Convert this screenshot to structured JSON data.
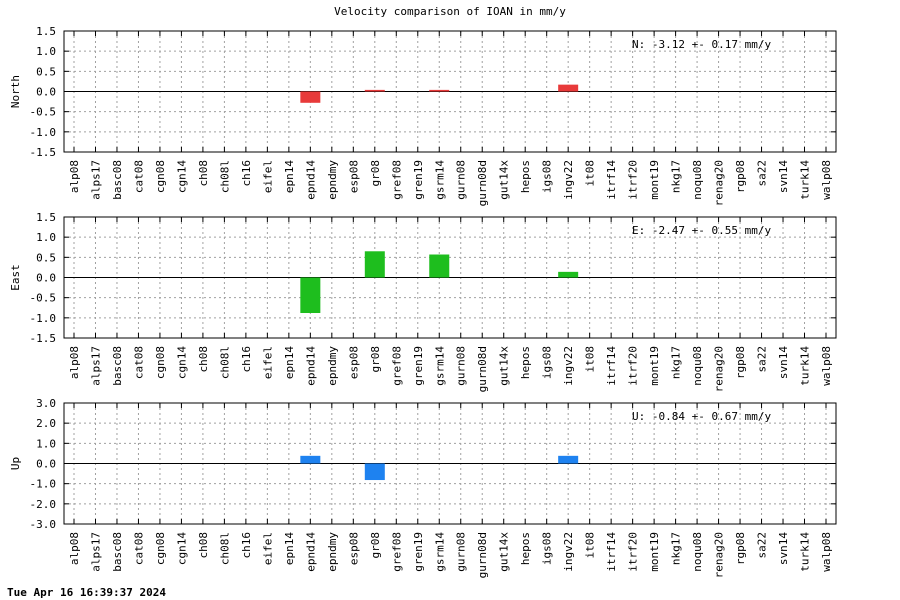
{
  "title": "Velocity comparison of IOAN in mm/y",
  "footer": "Tue Apr 16 16:39:37 2024",
  "chart_data": [
    {
      "type": "bar",
      "ylabel": "North",
      "annotation": "N:  -3.12 +-  0.17 mm/y",
      "ylim": [
        -1.5,
        1.5
      ],
      "yticks": [
        "1.5",
        "1.0",
        "0.5",
        "0.0",
        "-0.5",
        "-1.0",
        "-1.5"
      ],
      "color": "#e83a3a",
      "grid": true,
      "categories": [
        "alp08",
        "alps17",
        "basc08",
        "cat08",
        "cgn08",
        "cgn14",
        "ch08",
        "ch08l",
        "ch16",
        "eifel",
        "epn14",
        "epnd14",
        "epndmy",
        "esp08",
        "gr08",
        "gref08",
        "gren19",
        "gsrm14",
        "gurn08",
        "gurn08d",
        "gut14x",
        "hepos",
        "igs08",
        "ingv22",
        "it08",
        "itrf14",
        "itrf20",
        "mont19",
        "nkg17",
        "noqu08",
        "renag20",
        "rgp08",
        "sa22",
        "svn14",
        "turk14",
        "walp08"
      ],
      "values": [
        0,
        0,
        0,
        0,
        0,
        0,
        0,
        0,
        0,
        0,
        0,
        -0.28,
        0,
        0,
        0.04,
        0,
        0,
        0.04,
        0,
        0,
        0,
        0,
        0,
        0.17,
        0,
        0,
        0,
        0,
        0,
        0,
        0,
        0,
        0,
        0,
        0,
        0
      ]
    },
    {
      "type": "bar",
      "ylabel": "East",
      "annotation": "E:  -2.47 +-  0.55 mm/y",
      "ylim": [
        -1.5,
        1.5
      ],
      "yticks": [
        "1.5",
        "1.0",
        "0.5",
        "0.0",
        "-0.5",
        "-1.0",
        "-1.5"
      ],
      "color": "#1ebe1e",
      "grid": true,
      "categories": [
        "alp08",
        "alps17",
        "basc08",
        "cat08",
        "cgn08",
        "cgn14",
        "ch08",
        "ch08l",
        "ch16",
        "eifel",
        "epn14",
        "epnd14",
        "epndmy",
        "esp08",
        "gr08",
        "gref08",
        "gren19",
        "gsrm14",
        "gurn08",
        "gurn08d",
        "gut14x",
        "hepos",
        "igs08",
        "ingv22",
        "it08",
        "itrf14",
        "itrf20",
        "mont19",
        "nkg17",
        "noqu08",
        "renag20",
        "rgp08",
        "sa22",
        "svn14",
        "turk14",
        "walp08"
      ],
      "values": [
        0,
        0,
        0,
        0,
        0,
        0,
        0,
        0,
        0,
        0,
        0,
        -0.88,
        0,
        0,
        0.65,
        0,
        0,
        0.57,
        0,
        0,
        0,
        0,
        0,
        0.14,
        0,
        0,
        0,
        0,
        0,
        0,
        0,
        0,
        0,
        0,
        0,
        0
      ]
    },
    {
      "type": "bar",
      "ylabel": "Up",
      "annotation": "U:  -0.84 +-  0.67 mm/y",
      "ylim": [
        -3.0,
        3.0
      ],
      "yticks": [
        "3.0",
        "2.0",
        "1.0",
        "0.0",
        "-1.0",
        "-2.0",
        "-3.0"
      ],
      "color": "#1e82f0",
      "grid": true,
      "categories": [
        "alp08",
        "alps17",
        "basc08",
        "cat08",
        "cgn08",
        "cgn14",
        "ch08",
        "ch08l",
        "ch16",
        "eifel",
        "epn14",
        "epnd14",
        "epndmy",
        "esp08",
        "gr08",
        "gref08",
        "gren19",
        "gsrm14",
        "gurn08",
        "gurn08d",
        "gut14x",
        "hepos",
        "igs08",
        "ingv22",
        "it08",
        "itrf14",
        "itrf20",
        "mont19",
        "nkg17",
        "noqu08",
        "renag20",
        "rgp08",
        "sa22",
        "svn14",
        "turk14",
        "walp08"
      ],
      "values": [
        0,
        0,
        0,
        0,
        0,
        0,
        0,
        0,
        0,
        0,
        0,
        0.38,
        0,
        0,
        -0.82,
        0,
        0,
        0,
        0,
        0,
        0,
        0,
        0,
        0.38,
        0,
        0,
        0,
        0,
        0,
        0,
        0,
        0,
        0,
        0,
        0,
        0
      ]
    }
  ]
}
